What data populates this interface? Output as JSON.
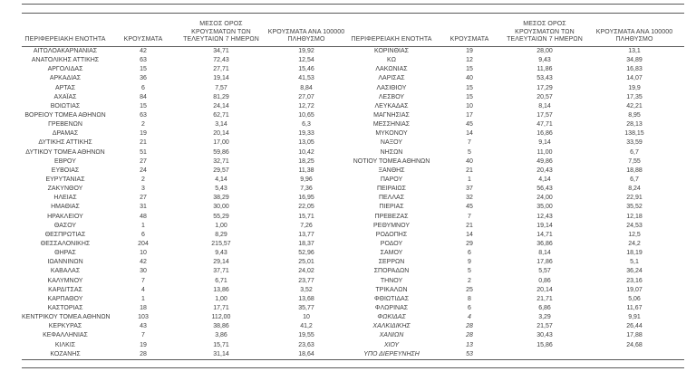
{
  "table": {
    "header": {
      "region": "ΠΕΡΙΦΕΡΕΙΑΚΗ ΕΝΟΤΗΤΑ",
      "cases": "ΚΡΟΥΣΜΑΤΑ",
      "avg7_lines": [
        "ΜΕΣΟΣ ΟΡΟΣ",
        "ΚΡΟΥΣΜΑΤΩΝ ΤΩΝ",
        "ΤΕΛΕΥΤΑΙΩΝ 7 ΗΜΕΡΩΝ"
      ],
      "per100k_lines": [
        "ΚΡΟΥΣΜΑΤΑ ΑΝΑ 100000",
        "ΠΛΗΘΥΣΜΟ"
      ]
    },
    "rule_color": "#595959",
    "text_color": "#3d3d3d",
    "left_rows": [
      {
        "name": "ΑΙΤΩΛΟΑΚΑΡΝΑΝΙΑΣ",
        "cases": "42",
        "avg7": "34,71",
        "per100k": "19,92"
      },
      {
        "name": "ΑΝΑΤΟΛΙΚΗΣ ΑΤΤΙΚΗΣ",
        "cases": "63",
        "avg7": "72,43",
        "per100k": "12,54"
      },
      {
        "name": "ΑΡΓΟΛΙΔΑΣ",
        "cases": "15",
        "avg7": "27,71",
        "per100k": "15,46"
      },
      {
        "name": "ΑΡΚΑΔΙΑΣ",
        "cases": "36",
        "avg7": "19,14",
        "per100k": "41,53"
      },
      {
        "name": "ΑΡΤΑΣ",
        "cases": "6",
        "avg7": "7,57",
        "per100k": "8,84"
      },
      {
        "name": "ΑΧΑΪΑΣ",
        "cases": "84",
        "avg7": "81,29",
        "per100k": "27,07"
      },
      {
        "name": "ΒΟΙΩΤΙΑΣ",
        "cases": "15",
        "avg7": "24,14",
        "per100k": "12,72"
      },
      {
        "name": "ΒΟΡΕΙΟΥ ΤΟΜΕΑ ΑΘΗΝΩΝ",
        "cases": "63",
        "avg7": "62,71",
        "per100k": "10,65"
      },
      {
        "name": "ΓΡΕΒΕΝΩΝ",
        "cases": "2",
        "avg7": "3,14",
        "per100k": "6,3"
      },
      {
        "name": "ΔΡΑΜΑΣ",
        "cases": "19",
        "avg7": "20,14",
        "per100k": "19,33"
      },
      {
        "name": "ΔΥΤΙΚΗΣ ΑΤΤΙΚΗΣ",
        "cases": "21",
        "avg7": "17,00",
        "per100k": "13,05"
      },
      {
        "name": "ΔΥΤΙΚΟΥ ΤΟΜΕΑ ΑΘΗΝΩΝ",
        "cases": "51",
        "avg7": "59,86",
        "per100k": "10,42"
      },
      {
        "name": "ΕΒΡΟΥ",
        "cases": "27",
        "avg7": "32,71",
        "per100k": "18,25"
      },
      {
        "name": "ΕΥΒΟΙΑΣ",
        "cases": "24",
        "avg7": "29,57",
        "per100k": "11,38"
      },
      {
        "name": "ΕΥΡΥΤΑΝΙΑΣ",
        "cases": "2",
        "avg7": "4,14",
        "per100k": "9,96"
      },
      {
        "name": "ΖΑΚΥΝΘΟΥ",
        "cases": "3",
        "avg7": "5,43",
        "per100k": "7,36"
      },
      {
        "name": "ΗΛΕΙΑΣ",
        "cases": "27",
        "avg7": "38,29",
        "per100k": "16,95"
      },
      {
        "name": "ΗΜΑΘΙΑΣ",
        "cases": "31",
        "avg7": "30,00",
        "per100k": "22,05"
      },
      {
        "name": "ΗΡΑΚΛΕΙΟΥ",
        "cases": "48",
        "avg7": "55,29",
        "per100k": "15,71"
      },
      {
        "name": "ΘΑΣΟΥ",
        "cases": "1",
        "avg7": "1,00",
        "per100k": "7,26"
      },
      {
        "name": "ΘΕΣΠΡΩΤΙΑΣ",
        "cases": "6",
        "avg7": "8,29",
        "per100k": "13,77"
      },
      {
        "name": "ΘΕΣΣΑΛΟΝΙΚΗΣ",
        "cases": "204",
        "avg7": "215,57",
        "per100k": "18,37"
      },
      {
        "name": "ΘΗΡΑΣ",
        "cases": "10",
        "avg7": "9,43",
        "per100k": "52,96"
      },
      {
        "name": "ΙΩΑΝΝΙΝΩΝ",
        "cases": "42",
        "avg7": "29,14",
        "per100k": "25,01"
      },
      {
        "name": "ΚΑΒΑΛΑΣ",
        "cases": "30",
        "avg7": "37,71",
        "per100k": "24,02"
      },
      {
        "name": "ΚΑΛΥΜΝΟΥ",
        "cases": "7",
        "avg7": "6,71",
        "per100k": "23,77"
      },
      {
        "name": "ΚΑΡΔΙΤΣΑΣ",
        "cases": "4",
        "avg7": "13,86",
        "per100k": "3,52"
      },
      {
        "name": "ΚΑΡΠΑΘΟΥ",
        "cases": "1",
        "avg7": "1,00",
        "per100k": "13,68"
      },
      {
        "name": "ΚΑΣΤΟΡΙΑΣ",
        "cases": "18",
        "avg7": "17,71",
        "per100k": "35,77"
      },
      {
        "name": "ΚΕΝΤΡΙΚΟΥ ΤΟΜΕΑ ΑΘΗΝΩΝ",
        "cases": "103",
        "avg7": "112,00",
        "per100k": "10"
      },
      {
        "name": "ΚΕΡΚΥΡΑΣ",
        "cases": "43",
        "avg7": "38,86",
        "per100k": "41,2"
      },
      {
        "name": "ΚΕΦΑΛΛΗΝΙΑΣ",
        "cases": "7",
        "avg7": "3,86",
        "per100k": "19,55"
      },
      {
        "name": "ΚΙΛΚΙΣ",
        "cases": "19",
        "avg7": "15,71",
        "per100k": "23,63"
      },
      {
        "name": "ΚΟΖΑΝΗΣ",
        "cases": "28",
        "avg7": "31,14",
        "per100k": "18,64"
      }
    ],
    "right_rows": [
      {
        "name": "ΚΟΡΙΝΘΙΑΣ",
        "cases": "19",
        "avg7": "28,00",
        "per100k": "13,1"
      },
      {
        "name": "ΚΩ",
        "cases": "12",
        "avg7": "9,43",
        "per100k": "34,89"
      },
      {
        "name": "ΛΑΚΩΝΙΑΣ",
        "cases": "15",
        "avg7": "11,86",
        "per100k": "16,83"
      },
      {
        "name": "ΛΑΡΙΣΑΣ",
        "cases": "40",
        "avg7": "53,43",
        "per100k": "14,07"
      },
      {
        "name": "ΛΑΣΙΘΙΟΥ",
        "cases": "15",
        "avg7": "17,29",
        "per100k": "19,9"
      },
      {
        "name": "ΛΕΣΒΟΥ",
        "cases": "15",
        "avg7": "20,57",
        "per100k": "17,35"
      },
      {
        "name": "ΛΕΥΚΑΔΑΣ",
        "cases": "10",
        "avg7": "8,14",
        "per100k": "42,21"
      },
      {
        "name": "ΜΑΓΝΗΣΙΑΣ",
        "cases": "17",
        "avg7": "17,57",
        "per100k": "8,95"
      },
      {
        "name": "ΜΕΣΣΗΝΙΑΣ",
        "cases": "45",
        "avg7": "47,71",
        "per100k": "28,13"
      },
      {
        "name": "ΜΥΚΟΝΟΥ",
        "cases": "14",
        "avg7": "16,86",
        "per100k": "138,15"
      },
      {
        "name": "ΝΑΞΟΥ",
        "cases": "7",
        "avg7": "9,14",
        "per100k": "33,59"
      },
      {
        "name": "ΝΗΣΩΝ",
        "cases": "5",
        "avg7": "11,00",
        "per100k": "6,7"
      },
      {
        "name": "ΝΟΤΙΟΥ ΤΟΜΕΑ ΑΘΗΝΩΝ",
        "cases": "40",
        "avg7": "49,86",
        "per100k": "7,55"
      },
      {
        "name": "ΞΑΝΘΗΣ",
        "cases": "21",
        "avg7": "20,43",
        "per100k": "18,88"
      },
      {
        "name": "ΠΑΡΟΥ",
        "cases": "1",
        "avg7": "4,14",
        "per100k": "6,7"
      },
      {
        "name": "ΠΕΙΡΑΙΩΣ",
        "cases": "37",
        "avg7": "56,43",
        "per100k": "8,24"
      },
      {
        "name": "ΠΕΛΛΑΣ",
        "cases": "32",
        "avg7": "24,00",
        "per100k": "22,91"
      },
      {
        "name": "ΠΙΕΡΙΑΣ",
        "cases": "45",
        "avg7": "35,00",
        "per100k": "35,52"
      },
      {
        "name": "ΠΡΕΒΕΖΑΣ",
        "cases": "7",
        "avg7": "12,43",
        "per100k": "12,18"
      },
      {
        "name": "ΡΕΘΥΜΝΟΥ",
        "cases": "21",
        "avg7": "19,14",
        "per100k": "24,53"
      },
      {
        "name": "ΡΟΔΟΠΗΣ",
        "cases": "14",
        "avg7": "14,71",
        "per100k": "12,5"
      },
      {
        "name": "ΡΟΔΟΥ",
        "cases": "29",
        "avg7": "36,86",
        "per100k": "24,2"
      },
      {
        "name": "ΣΑΜΟΥ",
        "cases": "6",
        "avg7": "8,14",
        "per100k": "18,19"
      },
      {
        "name": "ΣΕΡΡΩΝ",
        "cases": "9",
        "avg7": "17,86",
        "per100k": "5,1"
      },
      {
        "name": "ΣΠΟΡΑΔΩΝ",
        "cases": "5",
        "avg7": "5,57",
        "per100k": "36,24"
      },
      {
        "name": "ΤΗΝΟΥ",
        "cases": "2",
        "avg7": "0,86",
        "per100k": "23,16"
      },
      {
        "name": "ΤΡΙΚΑΛΩΝ",
        "cases": "25",
        "avg7": "20,14",
        "per100k": "19,07"
      },
      {
        "name": "ΦΘΙΩΤΙΔΑΣ",
        "cases": "8",
        "avg7": "21,71",
        "per100k": "5,06"
      },
      {
        "name": "ΦΛΩΡΙΝΑΣ",
        "cases": "6",
        "avg7": "6,86",
        "per100k": "11,67"
      },
      {
        "name": "ΦΩΚΙΔΑΣ",
        "cases": "4",
        "avg7": "3,29",
        "per100k": "9,91",
        "italic": true
      },
      {
        "name": "ΧΑΛΚΙΔΙΚΗΣ",
        "cases": "28",
        "avg7": "21,57",
        "per100k": "26,44",
        "italic": true
      },
      {
        "name": "ΧΑΝΙΩΝ",
        "cases": "28",
        "avg7": "30,43",
        "per100k": "17,88",
        "italic": true
      },
      {
        "name": "ΧΙΟΥ",
        "cases": "13",
        "avg7": "15,86",
        "per100k": "24,68",
        "italic": true
      },
      {
        "name": "ΥΠΟ ΔΙΕΡΕΥΝΗΣΗ",
        "cases": "53",
        "avg7": "",
        "per100k": "",
        "italic": true
      }
    ]
  }
}
